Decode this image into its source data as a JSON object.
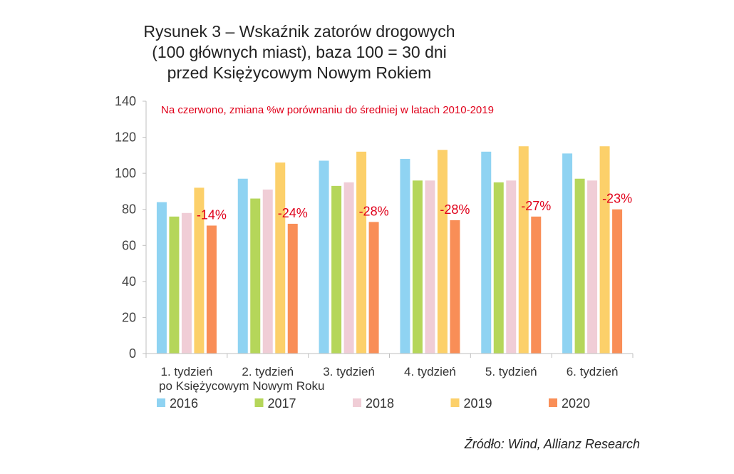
{
  "chart_data": {
    "type": "bar",
    "title_lines": [
      "Rysunek 3 – Wskaźnik zatorów drogowych",
      "(100 głównych miast), baza 100 = 30 dni",
      "przed Księżycowym Nowym Rokiem"
    ],
    "note": "Na czerwono, zmiana %w porównaniu do średniej w latach 2010-2019",
    "categories": [
      "1. tydzień",
      "2. tydzień",
      "3. tydzień",
      "4. tydzień",
      "5. tydzień",
      "6. tydzień"
    ],
    "xlabel": "po Księżycowym Nowym Roku",
    "ylim": [
      0,
      140
    ],
    "yticks": [
      "0",
      "20",
      "40",
      "60",
      "80",
      "100",
      "120",
      "140"
    ],
    "series": [
      {
        "name": "2016",
        "color": "#8fd3f2",
        "values": [
          84,
          97,
          107,
          108,
          112,
          111
        ]
      },
      {
        "name": "2017",
        "color": "#b5d65a",
        "values": [
          76,
          86,
          93,
          96,
          95,
          97
        ]
      },
      {
        "name": "2018",
        "color": "#f0cdd6",
        "values": [
          78,
          91,
          95,
          96,
          96,
          96
        ]
      },
      {
        "name": "2019",
        "color": "#fcd06a",
        "values": [
          92,
          106,
          112,
          113,
          115,
          115
        ]
      },
      {
        "name": "2020",
        "color": "#f98e57",
        "values": [
          71,
          72,
          73,
          74,
          76,
          80
        ]
      }
    ],
    "annotations": [
      "-14%",
      "-24%",
      "-28%",
      "-28%",
      "-27%",
      "-23%"
    ],
    "legend_position": "bottom",
    "grid": false
  },
  "source": "Źródło: Wind, Allianz Research"
}
